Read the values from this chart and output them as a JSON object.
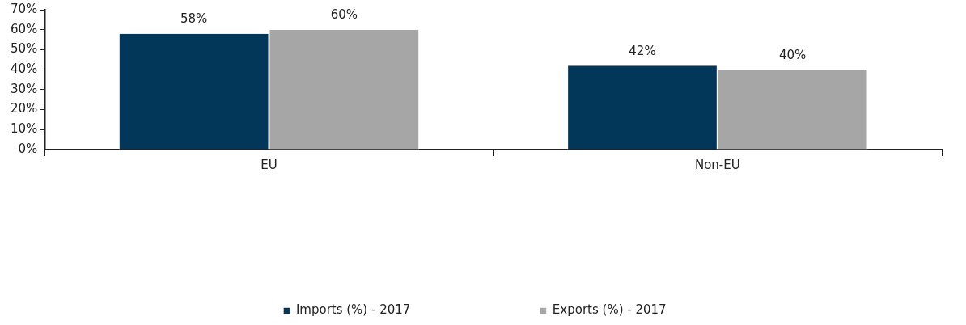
{
  "chart_data": {
    "type": "bar",
    "categories": [
      "EU",
      "Non-EU"
    ],
    "series": [
      {
        "name": "Imports (%) - 2017",
        "color": "#03375a",
        "values": [
          58,
          42
        ],
        "value_labels": [
          "58%",
          "42%"
        ]
      },
      {
        "name": "Exports (%) - 2017",
        "color": "#a6a6a6",
        "values": [
          60,
          40
        ],
        "value_labels": [
          "60%",
          "40%"
        ]
      }
    ],
    "ylim": [
      0,
      70
    ],
    "yticks": [
      {
        "value": 0,
        "label": "0%"
      },
      {
        "value": 10,
        "label": "10%"
      },
      {
        "value": 20,
        "label": "20%"
      },
      {
        "value": 30,
        "label": "30%"
      },
      {
        "value": 40,
        "label": "40%"
      },
      {
        "value": 50,
        "label": "50%"
      },
      {
        "value": 60,
        "label": "60%"
      },
      {
        "value": 70,
        "label": "70%"
      }
    ],
    "grid": false,
    "legend": "bottom"
  }
}
